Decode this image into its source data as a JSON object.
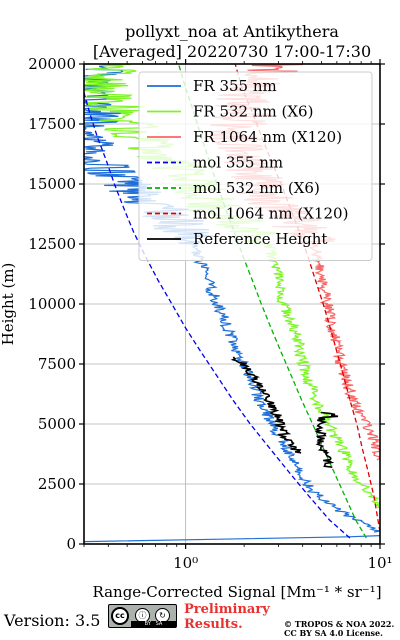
{
  "title_line1": "pollyxt_noa at Antikythera",
  "title_line2": "[Averaged] 20220730 17:00-17:30",
  "footer": {
    "version": "Version: 3.5",
    "cc_badge": {
      "cc": "cc",
      "by": "BY",
      "sa": "SA"
    },
    "preliminary": [
      "Preliminary",
      "Results."
    ],
    "copyright": [
      "© TROPOS & NOA 2022.",
      "CC BY SA 4.0 License."
    ]
  },
  "colors": {
    "fr355": "#1e6fd8",
    "fr532": "#7cf524",
    "fr1064": "#fa6465",
    "mol355": "#0000ee",
    "mol532": "#00b400",
    "mol1064": "#dd0000",
    "ref": "#000000"
  },
  "chart_data": {
    "type": "line",
    "xlabel": "Range-Corrected Signal [Mm⁻¹ * sr⁻¹]",
    "ylabel": "Height (m)",
    "xscale": "log",
    "xlim": [
      0.3,
      10
    ],
    "ylim": [
      0,
      20000
    ],
    "x_ticks": [
      1,
      10
    ],
    "x_ticklabels": [
      "10⁰",
      "10¹"
    ],
    "y_ticks": [
      0,
      2500,
      5000,
      7500,
      10000,
      12500,
      15000,
      17500,
      20000
    ],
    "y_ticklabels": [
      "0",
      "2500",
      "5000",
      "7500",
      "10000",
      "12500",
      "15000",
      "17500",
      "20000"
    ],
    "grid": true,
    "legend_position": "upper-right",
    "series": [
      {
        "name": "FR 355 nm",
        "style": "solid",
        "color_key": "fr355",
        "points": [
          [
            0.3,
            100
          ],
          [
            1.5,
            200
          ],
          [
            6.9,
            300
          ],
          [
            10,
            350
          ]
        ],
        "profile": [
          [
            10,
            500
          ],
          [
            5.8,
            1500
          ],
          [
            4.5,
            2200
          ],
          [
            3.8,
            3000
          ],
          [
            3.3,
            4000
          ],
          [
            2.8,
            5000
          ],
          [
            2.4,
            6000
          ],
          [
            2.1,
            7000
          ],
          [
            1.85,
            8000
          ],
          [
            1.65,
            9000
          ],
          [
            1.45,
            10000
          ],
          [
            1.3,
            11000
          ],
          [
            1.15,
            12000
          ],
          [
            1.05,
            12800
          ],
          [
            0.9,
            13500
          ],
          [
            0.6,
            14500
          ],
          [
            0.4,
            15500
          ],
          [
            0.3,
            16500
          ],
          [
            0.35,
            17500
          ],
          [
            0.3,
            19000
          ],
          [
            0.4,
            20000
          ]
        ]
      },
      {
        "name": "FR 532 nm (X6)",
        "style": "solid",
        "color_key": "fr532",
        "profile": [
          [
            10,
            1500
          ],
          [
            8.5,
            2300
          ],
          [
            7.2,
            3000
          ],
          [
            6.4,
            4000
          ],
          [
            5.4,
            5000
          ],
          [
            4.7,
            6000
          ],
          [
            4.2,
            7000
          ],
          [
            3.9,
            8000
          ],
          [
            3.6,
            9000
          ],
          [
            3.2,
            10000
          ],
          [
            3.0,
            11000
          ],
          [
            2.8,
            12000
          ],
          [
            2.6,
            12800
          ],
          [
            1.5,
            13800
          ],
          [
            1.0,
            15500
          ],
          [
            0.5,
            17500
          ],
          [
            0.35,
            19500
          ],
          [
            0.5,
            20000
          ]
        ]
      },
      {
        "name": "FR 1064 nm (X120)",
        "style": "solid",
        "color_key": "fr1064",
        "profile": [
          [
            10,
            3500
          ],
          [
            9.2,
            4500
          ],
          [
            7.8,
            5500
          ],
          [
            6.9,
            6500
          ],
          [
            6.3,
            7500
          ],
          [
            5.9,
            8500
          ],
          [
            5.5,
            9500
          ],
          [
            5.2,
            10500
          ],
          [
            4.9,
            11500
          ],
          [
            4.6,
            12500
          ],
          [
            3.5,
            13500
          ],
          [
            2.5,
            14800
          ],
          [
            1.8,
            16500
          ],
          [
            2.0,
            18500
          ],
          [
            2.5,
            19500
          ],
          [
            3.0,
            20000
          ]
        ]
      },
      {
        "name": "mol 355 nm",
        "style": "dashed",
        "color_key": "mol355",
        "profile": [
          [
            7.0,
            250
          ],
          [
            5.5,
            1000
          ],
          [
            4.3,
            2000
          ],
          [
            3.4,
            3000
          ],
          [
            2.7,
            4000
          ],
          [
            2.15,
            5000
          ],
          [
            1.75,
            6000
          ],
          [
            1.45,
            7000
          ],
          [
            1.2,
            8000
          ],
          [
            1.0,
            9000
          ],
          [
            0.85,
            10000
          ],
          [
            0.72,
            11000
          ],
          [
            0.62,
            12000
          ],
          [
            0.54,
            13000
          ],
          [
            0.48,
            14000
          ],
          [
            0.43,
            15000
          ],
          [
            0.39,
            16000
          ],
          [
            0.35,
            17000
          ],
          [
            0.32,
            18000
          ],
          [
            0.3,
            18800
          ]
        ]
      },
      {
        "name": "mol 532 nm (X6)",
        "style": "dashed",
        "color_key": "mol532",
        "profile": [
          [
            8.5,
            250
          ],
          [
            7.5,
            1000
          ],
          [
            6.6,
            2000
          ],
          [
            5.8,
            3000
          ],
          [
            5.1,
            4000
          ],
          [
            4.5,
            5000
          ],
          [
            3.95,
            6000
          ],
          [
            3.5,
            7000
          ],
          [
            3.1,
            8000
          ],
          [
            2.75,
            9000
          ],
          [
            2.45,
            10000
          ],
          [
            2.2,
            11000
          ],
          [
            1.97,
            12000
          ],
          [
            1.78,
            13000
          ],
          [
            1.6,
            14000
          ],
          [
            1.45,
            15000
          ],
          [
            1.32,
            16000
          ],
          [
            1.2,
            17000
          ],
          [
            1.1,
            18000
          ],
          [
            1.0,
            19000
          ],
          [
            0.92,
            20000
          ]
        ]
      },
      {
        "name": "mol 1064 nm (X120)",
        "style": "dashed",
        "color_key": "mol1064",
        "profile": [
          [
            10,
            500
          ],
          [
            9.3,
            2000
          ],
          [
            8.7,
            3000
          ],
          [
            8.1,
            4000
          ],
          [
            7.6,
            5000
          ],
          [
            7.0,
            6000
          ],
          [
            6.5,
            7000
          ],
          [
            6.0,
            8000
          ],
          [
            5.55,
            9000
          ],
          [
            5.1,
            10000
          ],
          [
            4.65,
            11000
          ],
          [
            4.25,
            12000
          ],
          [
            3.85,
            13000
          ],
          [
            3.45,
            14000
          ],
          [
            3.1,
            15000
          ],
          [
            2.75,
            16000
          ],
          [
            2.45,
            17000
          ],
          [
            2.2,
            18000
          ],
          [
            1.95,
            19000
          ],
          [
            1.8,
            20000
          ]
        ]
      },
      {
        "name": "Reference Height",
        "style": "solid",
        "color_key": "ref",
        "segments": [
          {
            "profile": [
              [
                3.8,
                3800
              ],
              [
                3.4,
                4200
              ],
              [
                3.1,
                4800
              ],
              [
                2.9,
                5500
              ],
              [
                2.7,
                6000
              ],
              [
                2.5,
                6500
              ],
              [
                2.2,
                7000
              ],
              [
                2.0,
                7500
              ],
              [
                1.7,
                7800
              ]
            ]
          },
          {
            "profile": [
              [
                5.5,
                3200
              ],
              [
                5.2,
                3700
              ],
              [
                5.0,
                4200
              ],
              [
                4.9,
                4800
              ],
              [
                5.1,
                5300
              ],
              [
                5.7,
                5100
              ],
              [
                6.4,
                4900
              ],
              [
                7.1,
                4500
              ],
              [
                7.6,
                4100
              ],
              [
                7.9,
                4300
              ],
              [
                7.4,
                4700
              ],
              [
                6.4,
                5300
              ],
              [
                5.0,
                5500
              ]
            ]
          }
        ]
      }
    ]
  }
}
